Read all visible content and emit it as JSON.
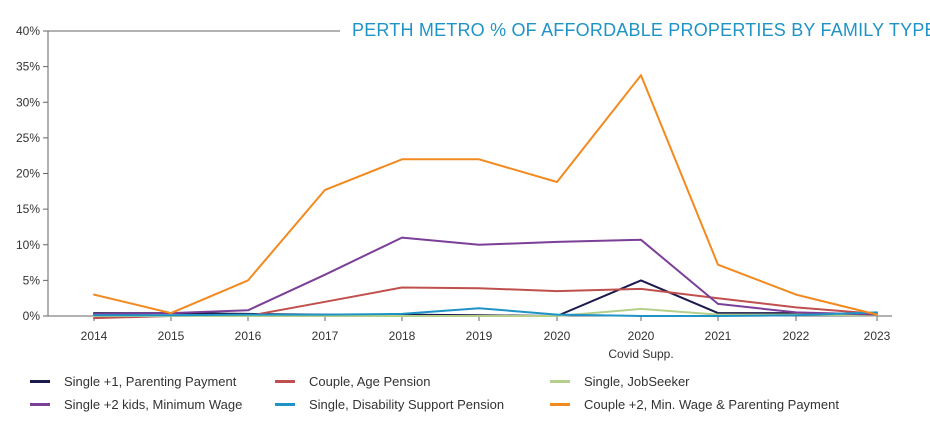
{
  "chart_data": {
    "type": "line",
    "title": "PERTH METRO % OF AFFORDABLE PROPERTIES BY FAMILY TYPE",
    "xlabel": "",
    "ylabel": "",
    "categories": [
      "2014",
      "2015",
      "2016",
      "2017",
      "2018",
      "2019",
      "2020",
      "2020",
      "2021",
      "2022",
      "2023"
    ],
    "x_sublabels": [
      "",
      "",
      "",
      "",
      "",
      "",
      "",
      "Covid Supp.",
      "",
      "",
      ""
    ],
    "y_ticks": [
      "0%",
      "5%",
      "10%",
      "15%",
      "20%",
      "25%",
      "30%",
      "35%",
      "40%"
    ],
    "ylim": [
      0,
      40
    ],
    "grid": false,
    "legend_position": "bottom",
    "series": [
      {
        "name": "Single +1, Parenting Payment",
        "color": "#1c1b4d",
        "values": [
          0.4,
          0.4,
          0.3,
          0.2,
          0.2,
          0.1,
          0.0,
          5.0,
          0.4,
          0.4,
          0.2
        ]
      },
      {
        "name": "Couple, Age Pension",
        "color": "#c0504d",
        "values": [
          -0.3,
          0.0,
          0.0,
          2.0,
          4.0,
          3.9,
          3.5,
          3.8,
          2.5,
          1.2,
          0.3
        ]
      },
      {
        "name": "Single, JobSeeker",
        "color": "#b5cf8b",
        "values": [
          0.0,
          0.0,
          0.0,
          0.0,
          0.0,
          0.0,
          0.0,
          1.0,
          0.2,
          0.2,
          0.1
        ]
      },
      {
        "name": "Single +2 kids, Minimum Wage",
        "color": "#7b3f97",
        "values": [
          0.3,
          0.4,
          0.8,
          5.8,
          11.0,
          10.0,
          10.4,
          10.7,
          1.7,
          0.5,
          0.2
        ]
      },
      {
        "name": "Single, Disability Support Pension",
        "color": "#1f93c5",
        "values": [
          0.1,
          0.1,
          0.2,
          0.2,
          0.3,
          1.1,
          0.2,
          0.0,
          0.0,
          0.1,
          0.5
        ]
      },
      {
        "name": "Couple +2, Min. Wage & Parenting Payment",
        "color": "#f28a1f",
        "values": [
          3.0,
          0.4,
          5.0,
          17.7,
          22.0,
          22.0,
          18.8,
          33.8,
          7.2,
          3.0,
          0.2
        ]
      }
    ]
  },
  "colors": {
    "title": "#1f93c5",
    "axis": "#555555",
    "tick_label": "#333333"
  }
}
